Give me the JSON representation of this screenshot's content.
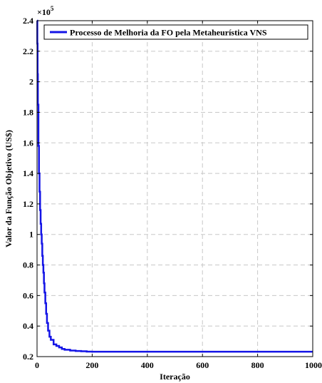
{
  "chart_data": {
    "type": "line",
    "title": "",
    "xlabel": "Iteração",
    "ylabel": "Valor da Função Objetivo (US$)",
    "y_multiplier_label": "×10",
    "y_multiplier_exponent": "5",
    "xlim": [
      0,
      1000
    ],
    "ylim": [
      0.2,
      2.4
    ],
    "x_ticks": [
      0,
      200,
      400,
      600,
      800,
      1000
    ],
    "x_tick_labels": [
      "0",
      "200",
      "400",
      "600",
      "800",
      "1000"
    ],
    "y_ticks": [
      0.2,
      0.4,
      0.6,
      0.8,
      1.0,
      1.2,
      1.4,
      1.6,
      1.8,
      2.0,
      2.2,
      2.4
    ],
    "y_tick_labels": [
      "0.2",
      "0.4",
      "0.6",
      "0.8",
      "1",
      "1.2",
      "1.4",
      "1.6",
      "1.8",
      "2",
      "2.2",
      "2.4"
    ],
    "grid": true,
    "legend_position": "top",
    "series": [
      {
        "name": "Processo de Melhoria da FO pela Metaheurística VNS",
        "color": "#1414e6",
        "x": [
          0,
          1,
          2,
          3,
          5,
          7,
          9,
          11,
          13,
          15,
          17,
          19,
          21,
          23,
          25,
          27,
          30,
          33,
          36,
          40,
          45,
          50,
          60,
          70,
          80,
          90,
          100,
          120,
          140,
          160,
          180,
          200,
          300,
          400,
          500,
          600,
          700,
          800,
          900,
          1000
        ],
        "y": [
          2.4,
          2.25,
          2.05,
          1.85,
          1.58,
          1.4,
          1.28,
          1.16,
          1.07,
          1.0,
          0.94,
          0.86,
          0.8,
          0.75,
          0.68,
          0.62,
          0.55,
          0.48,
          0.42,
          0.37,
          0.33,
          0.31,
          0.28,
          0.27,
          0.26,
          0.25,
          0.245,
          0.24,
          0.237,
          0.235,
          0.233,
          0.232,
          0.232,
          0.232,
          0.232,
          0.232,
          0.232,
          0.232,
          0.232,
          0.232
        ]
      }
    ]
  }
}
